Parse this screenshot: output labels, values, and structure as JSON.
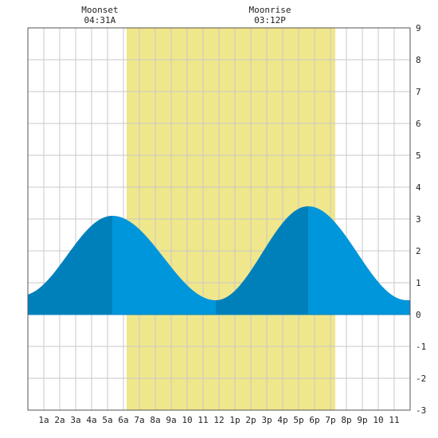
{
  "chart_data": {
    "type": "area",
    "x_unit": "hour of day",
    "xlim": [
      0,
      24
    ],
    "ylim": [
      -3,
      9
    ],
    "y_ticks": [
      -3,
      -2,
      -1,
      0,
      1,
      2,
      3,
      4,
      5,
      6,
      7,
      8,
      9
    ],
    "x_tick_labels": [
      "1a",
      "2a",
      "3a",
      "4a",
      "5a",
      "6a",
      "7a",
      "8a",
      "9a",
      "10",
      "11",
      "12",
      "1p",
      "2p",
      "3p",
      "4p",
      "5p",
      "6p",
      "7p",
      "8p",
      "9p",
      "10",
      "11"
    ],
    "grid": true,
    "moon_events": [
      {
        "label": "Moonset",
        "time": "04:31A",
        "hour": 4.52
      },
      {
        "label": "Moonrise",
        "time": "03:12P",
        "hour": 15.2
      }
    ],
    "daylight": {
      "start_hour": 6.2,
      "end_hour": 19.3
    },
    "tide_extremes": [
      {
        "type": "low",
        "hour": -0.4,
        "value": 0.6
      },
      {
        "type": "high",
        "hour": 5.3,
        "value": 3.1
      },
      {
        "type": "low",
        "hour": 11.8,
        "value": 0.45
      },
      {
        "type": "high",
        "hour": 17.6,
        "value": 3.4
      },
      {
        "type": "low",
        "hour": 23.8,
        "value": 0.45
      }
    ],
    "colors": {
      "daylight": "#f0e68c",
      "tide_light": "#0096dc",
      "tide_dark": "#0080bb",
      "grid": "#c8c8c8",
      "plot_background": "#ffffff"
    }
  }
}
